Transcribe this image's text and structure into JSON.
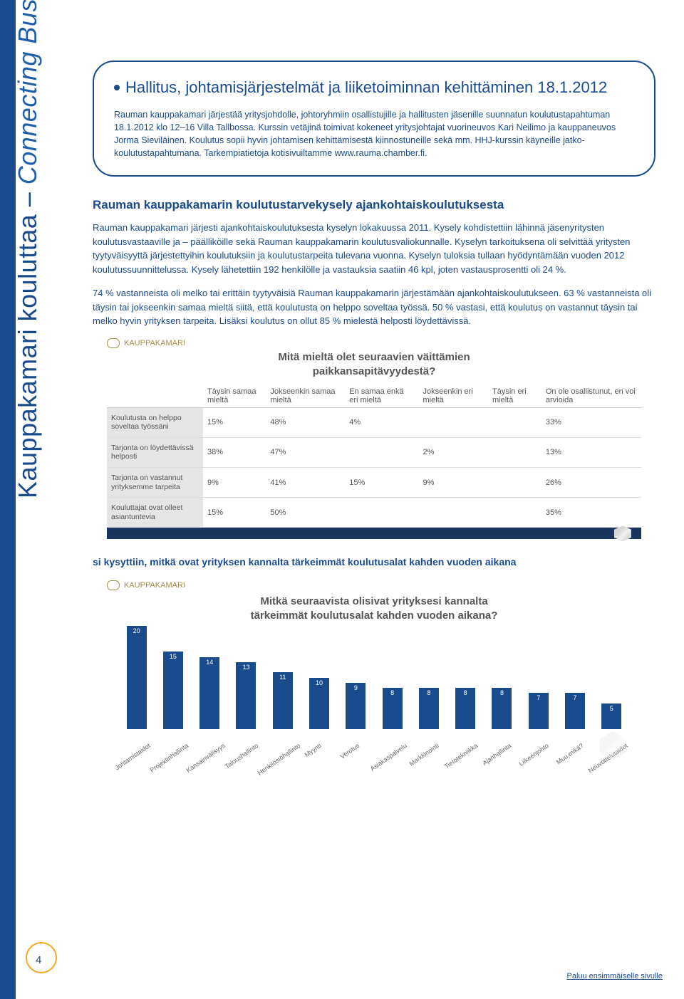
{
  "sidebar": {
    "text_main": "Kauppakamari kouluttaa – ",
    "text_italic": "Connecting Business"
  },
  "callout": {
    "title": "Hallitus, johtamisjärjestelmät ja liiketoiminnan kehittäminen 18.1.2012",
    "body": "Rauman kauppakamari järjestää yritysjohdolle, johtoryhmiin osallistujille ja hallitusten jäsenille suunnatun koulutustapahtuman 18.1.2012 klo 12–16 Villa Tallbossa. Kurssin vetäjinä toimivat kokeneet yritysjohtajat vuorineuvos Kari Neilimo ja kauppaneuvos Jorma Sieviläinen. Koulutus sopii hyvin johtamisen kehittämisestä kiinnostuneille sekä mm. HHJ-kurssin käyneille jatko-koulutustapahtumana. Tarkempiatietoja kotisivuiltamme www.rauma.chamber.fi."
  },
  "section1": {
    "title": "Rauman kauppakamarin koulutustarvekysely ajankohtaiskoulutuksesta",
    "p1": "Rauman kauppakamari järjesti ajankohtaiskoulutuksesta kyselyn lokakuussa 2011. Kysely kohdistettiin lähinnä jäsenyritysten koulutusvastaaville ja – päälliköille sekä Rauman kauppakamarin koulutusvaliokunnalle. Kyselyn tarkoituksena oli selvittää yritysten tyytyväisyyttä järjestettyihin koulutuksiin ja koulutustarpeita tulevana vuonna. Kyselyn tuloksia tullaan hyödyntämään vuoden 2012 koulutussuunnittelussa. Kysely lähetettiin 192 henkilölle ja vastauksia saatiin 46 kpl, joten vastausprosentti oli 24 %.",
    "p2": "74 % vastanneista oli melko tai erittäin tyytyväisiä Rauman kauppakamarin järjestämään ajankohtaiskoulutukseen. 63 % vastanneista oli täysin tai jokseenkin samaa mieltä siitä, että koulutusta on helppo soveltaa työssä. 50 % vastasi, että koulutus on vastannut täysin tai melko hyvin yrityksen tarpeita. Lisäksi koulutus on ollut 85 % mielestä helposti löydettävissä."
  },
  "table": {
    "brand": "KAUPPAKAMARI",
    "title_l1": "Mitä mieltä olet seuraavien väittämien",
    "title_l2": "paikkansapitävyydestä?",
    "columns": [
      "Täysin samaa mieltä",
      "Jokseenkin samaa mieltä",
      "En samaa enkä eri mieltä",
      "Jokseenkin eri mieltä",
      "Täysin eri mieltä",
      "On ole osallistunut, en voi arvioida"
    ],
    "rows": [
      {
        "label": "Koulutusta on helppo soveltaa työssäni",
        "cells": [
          "15%",
          "48%",
          "4%",
          "",
          "",
          "33%"
        ]
      },
      {
        "label": "Tarjonta on löydettävissä helposti",
        "cells": [
          "38%",
          "47%",
          "",
          "2%",
          "",
          "13%"
        ]
      },
      {
        "label": "Tarjonta on vastannut yrityksemme tarpeita",
        "cells": [
          "9%",
          "41%",
          "15%",
          "9%",
          "",
          "26%"
        ]
      },
      {
        "label": "Kouluttajat ovat olleet asiantuntevia",
        "cells": [
          "15%",
          "50%",
          "",
          "",
          "",
          "35%"
        ]
      }
    ],
    "grid_color": "#dddddd",
    "header_bg": "#ffffff",
    "rowlabel_bg": "#e5e5e5",
    "footer_bar_color": "#1a365d"
  },
  "mid_text": "si kysyttiin, mitkä ovat yrityksen kannalta tärkeimmät koulutusalat kahden vuoden aikana",
  "chart": {
    "brand": "KAUPPAKAMARI",
    "title_l1": "Mitkä seuraavista olisivat yrityksesi kannalta",
    "title_l2": "tärkeimmät koulutusalat kahden vuoden aikana?",
    "type": "bar",
    "categories": [
      "Johtamistaidot",
      "Projektinhallinta",
      "Kansainvälisyys",
      "Taloushallinto",
      "Henkilöstöhallinto",
      "Myynti",
      "Verotus",
      "Asiakaspalvelu",
      "Markkinointi",
      "Tietotekniikka",
      "Ajanhallinta",
      "Liikeenjohto",
      "Muu,mikä?",
      "Neuvottelutaidot"
    ],
    "values": [
      20,
      15,
      14,
      13,
      11,
      10,
      9,
      8,
      8,
      8,
      8,
      7,
      7,
      5
    ],
    "bar_color": "#1a4b8c",
    "background_color": "#ffffff",
    "ylim": [
      0,
      22
    ],
    "label_fontsize": 9,
    "title_fontsize": 15,
    "value_label_color": "#ffffff"
  },
  "page_number": "4",
  "footer_link": "Paluu ensimmäiselle sivulle"
}
